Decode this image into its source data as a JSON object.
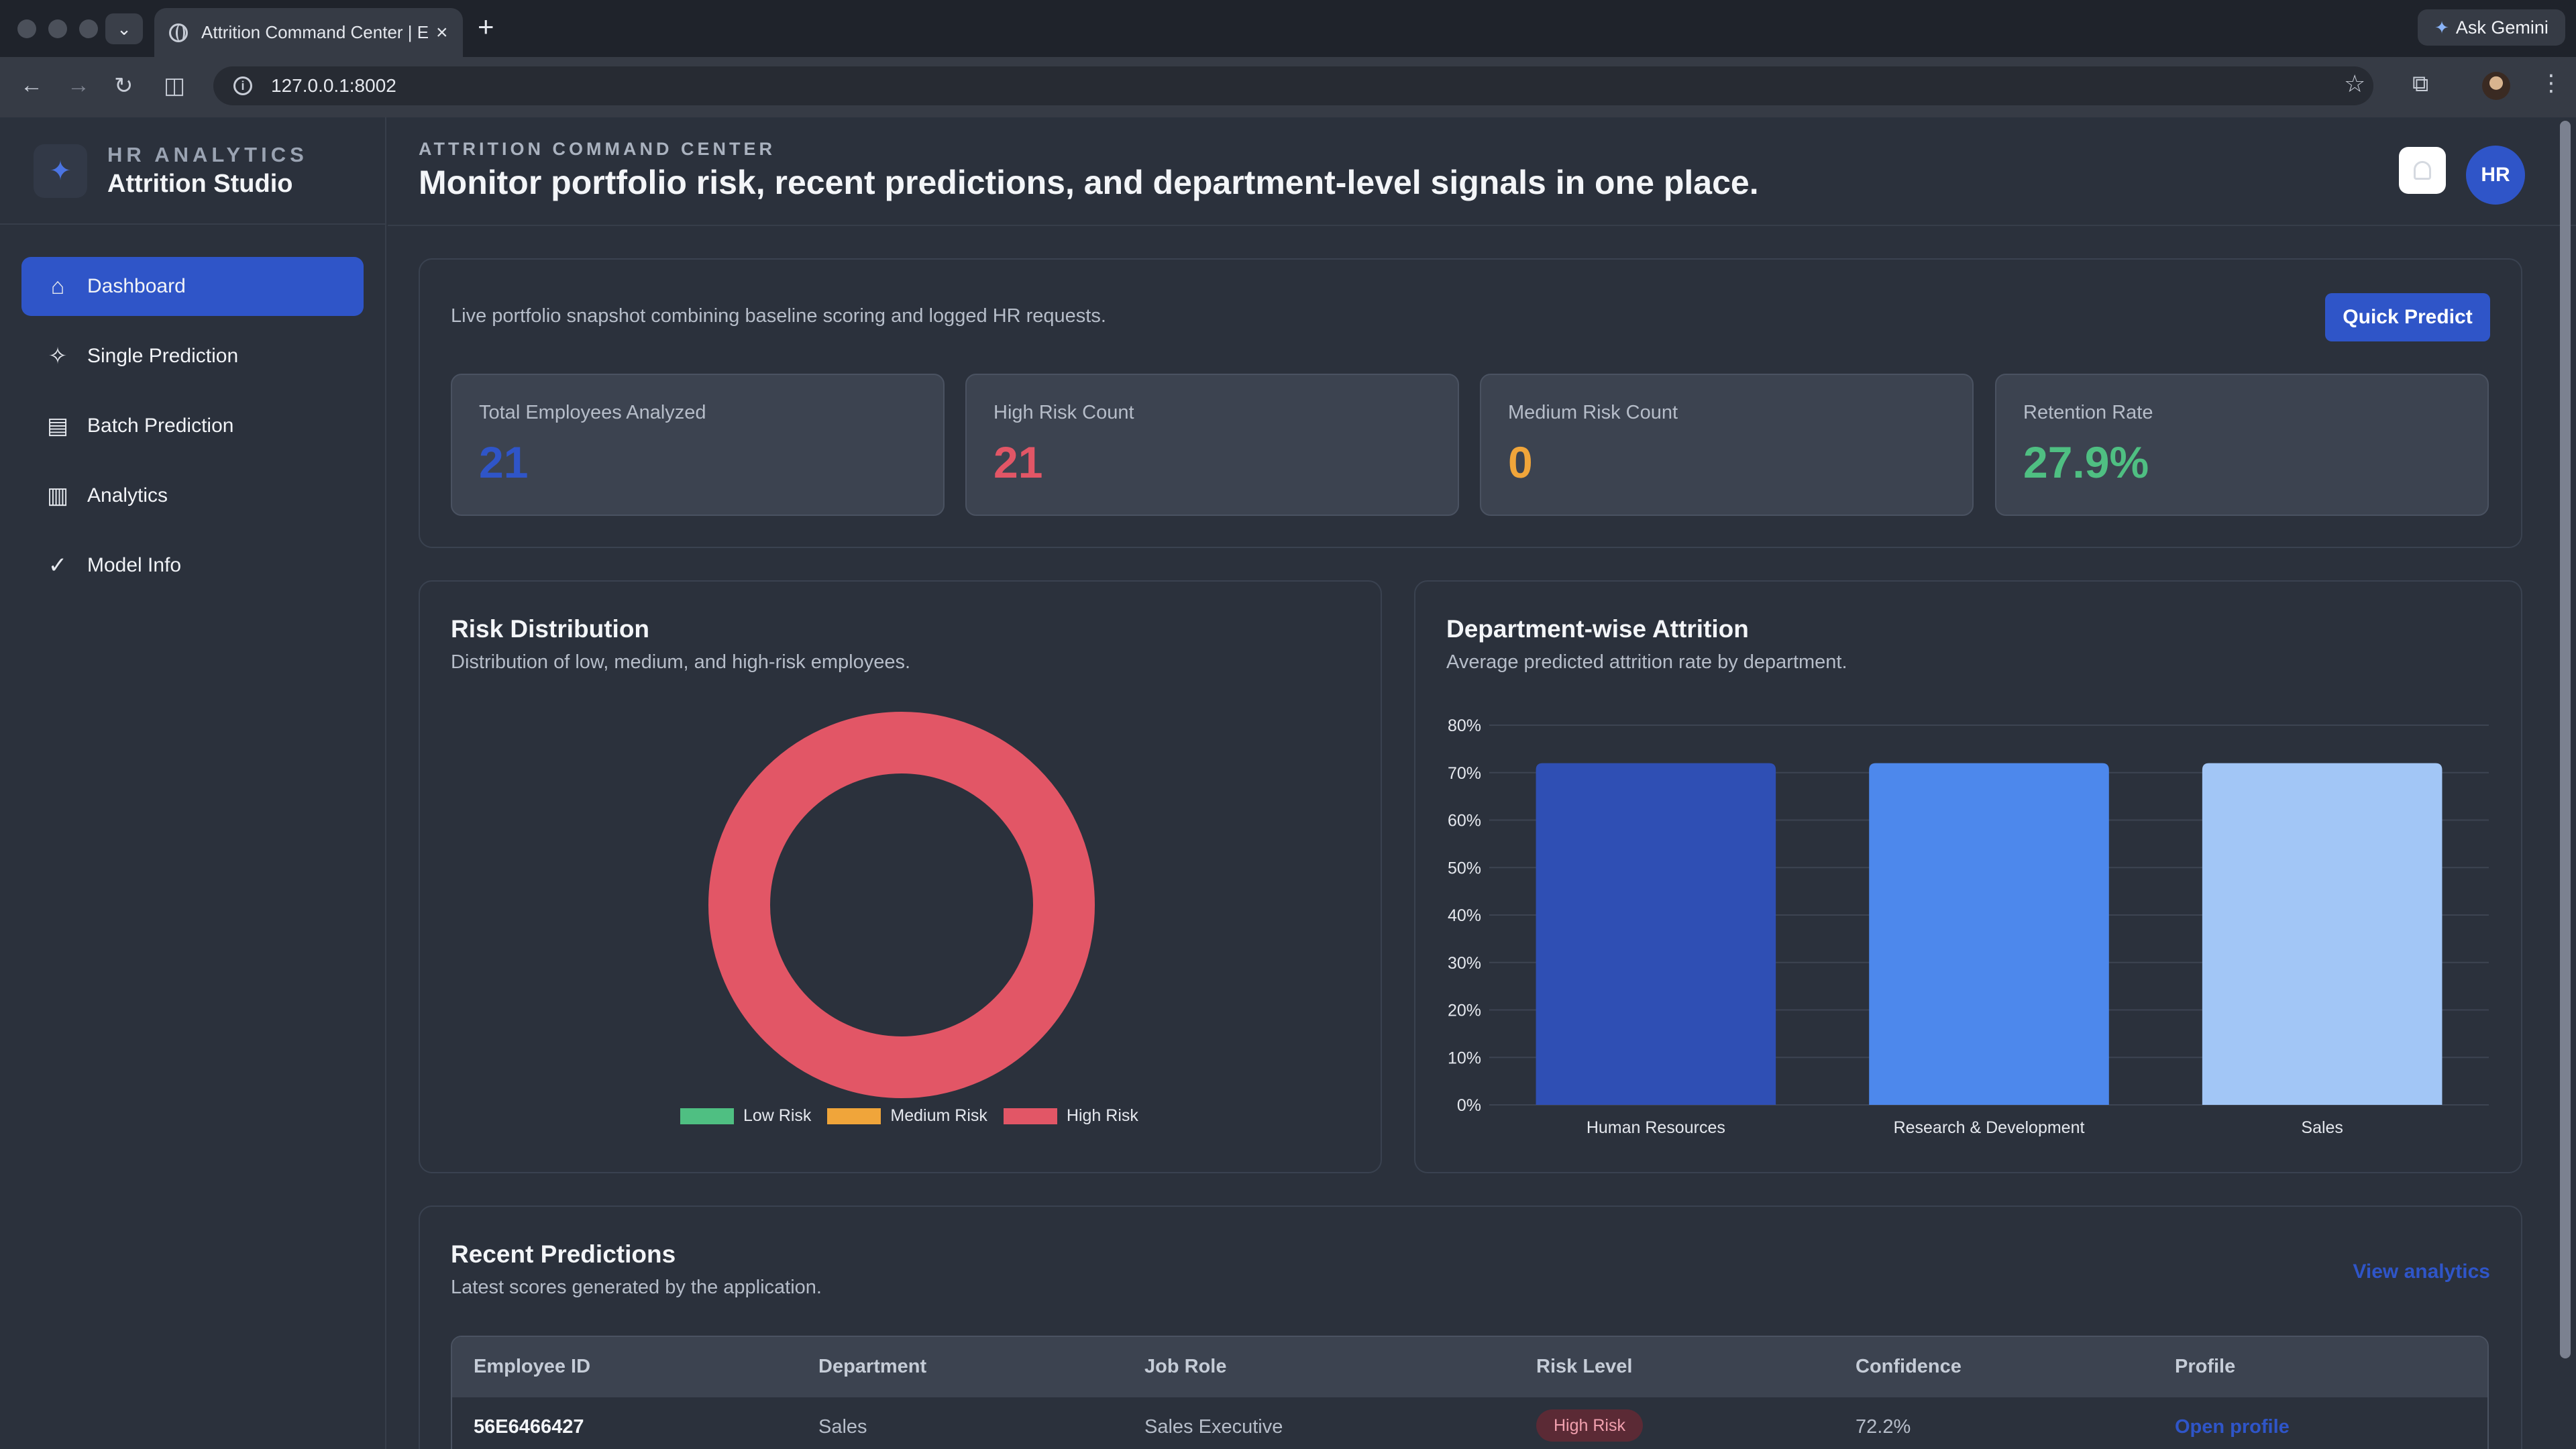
{
  "browser": {
    "tab_title": "Attrition Command Center | E",
    "url": "127.0.0.1:8002",
    "gemini_label": "Ask Gemini"
  },
  "sidebar": {
    "kicker": "HR ANALYTICS",
    "brand": "Attrition Studio",
    "items": [
      {
        "label": "Dashboard",
        "icon": "home-icon",
        "active": true
      },
      {
        "label": "Single Prediction",
        "icon": "sparkle-icon",
        "active": false
      },
      {
        "label": "Batch Prediction",
        "icon": "table-icon",
        "active": false
      },
      {
        "label": "Analytics",
        "icon": "bar-chart-icon",
        "active": false
      },
      {
        "label": "Model Info",
        "icon": "check-circle-icon",
        "active": false
      }
    ]
  },
  "header": {
    "kicker": "ATTRITION COMMAND CENTER",
    "title": "Monitor portfolio risk, recent predictions, and department-level signals in one place.",
    "avatar_initials": "HR"
  },
  "snapshot": {
    "description": "Live portfolio snapshot combining baseline scoring and logged HR requests.",
    "quick_predict_label": "Quick Predict",
    "kpis": [
      {
        "label": "Total Employees Analyzed",
        "value": "21",
        "color": "#2f55c8"
      },
      {
        "label": "High Risk Count",
        "value": "21",
        "color": "#e25666"
      },
      {
        "label": "Medium Risk Count",
        "value": "0",
        "color": "#f0a53a"
      },
      {
        "label": "Retention Rate",
        "value": "27.9%",
        "color": "#4fbf82"
      }
    ]
  },
  "risk_distribution": {
    "title": "Risk Distribution",
    "subtitle": "Distribution of low, medium, and high-risk employees."
  },
  "department_attrition": {
    "title": "Department-wise Attrition",
    "subtitle": "Average predicted attrition rate by department."
  },
  "chart_data": [
    {
      "type": "pie",
      "title": "Risk Distribution",
      "categories": [
        "Low Risk",
        "Medium Risk",
        "High Risk"
      ],
      "values": [
        0,
        0,
        21
      ],
      "colors": [
        "#4fbf82",
        "#f0a53a",
        "#e25666"
      ],
      "legend": "bottom"
    },
    {
      "type": "bar",
      "title": "Department-wise Attrition",
      "categories": [
        "Human Resources",
        "Research & Development",
        "Sales"
      ],
      "values": [
        72,
        72,
        72
      ],
      "colors": [
        "#2f4fb4",
        "#4d88ec",
        "#a2c6f6"
      ],
      "ylim": [
        0,
        80
      ],
      "yticks": [
        "0%",
        "10%",
        "20%",
        "30%",
        "40%",
        "50%",
        "60%",
        "70%",
        "80%"
      ],
      "grid": true
    }
  ],
  "recent": {
    "title": "Recent Predictions",
    "subtitle": "Latest scores generated by the application.",
    "view_link": "View analytics",
    "columns": [
      "Employee ID",
      "Department",
      "Job Role",
      "Risk Level",
      "Confidence",
      "Profile"
    ],
    "rows": [
      {
        "id": "56E6466427",
        "department": "Sales",
        "job_role": "Sales Executive",
        "risk": "High Risk",
        "confidence": "72.2%",
        "profile": "Open profile"
      }
    ]
  }
}
